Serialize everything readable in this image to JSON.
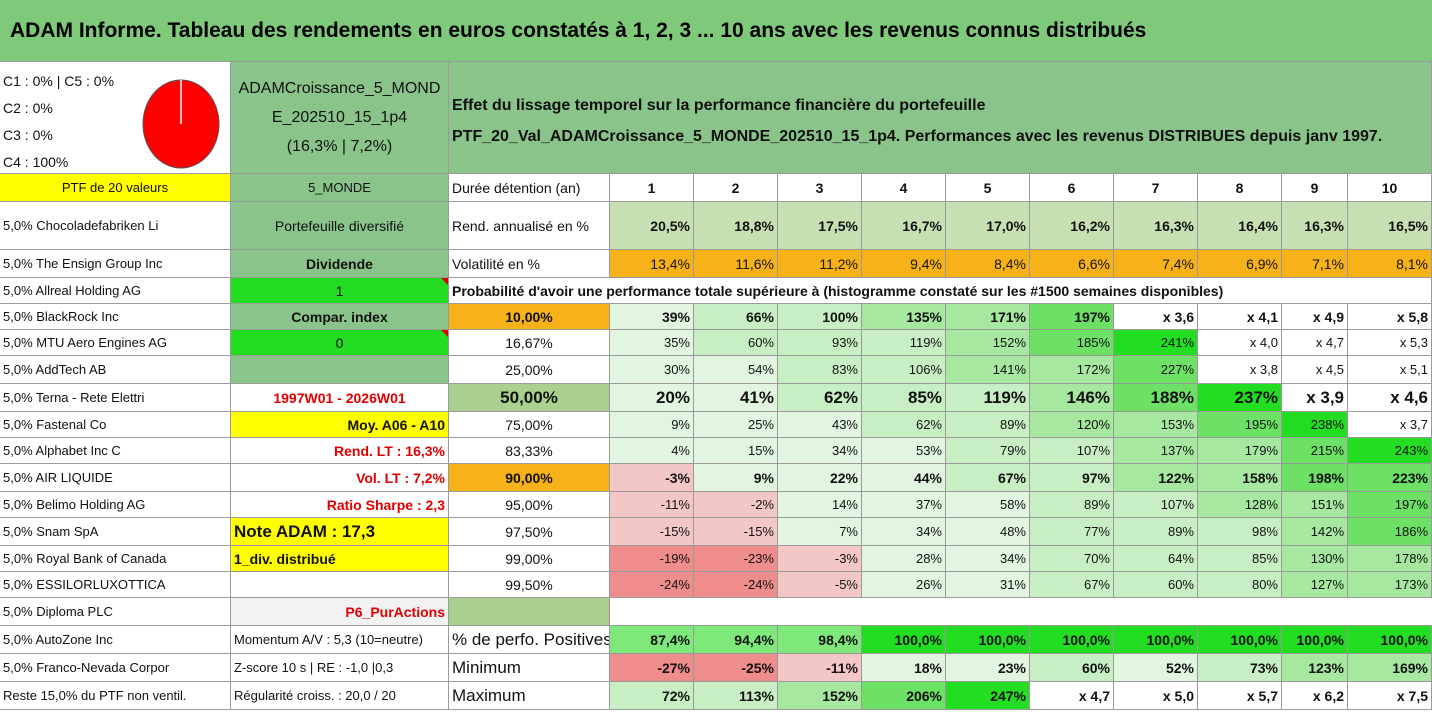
{
  "title": "ADAM Informe. Tableau des rendements en euros constatés à 1, 2, 3 ... 10 ans avec les revenus connus distribués",
  "class_lines": [
    "C1 : 0% | C5 : 0%",
    "C2 : 0%",
    "C3 : 0%",
    "C4 : 100%"
  ],
  "pie_color": "#ff0000",
  "portfolio_name_lines": [
    "ADAMCroissance_5_MOND",
    "E_202510_15_1p4",
    "(16,3% | 7,2%)"
  ],
  "description_lines": [
    "Effet du lissage temporel sur la performance financière du portefeuille",
    "PTF_20_Val_ADAMCroissance_5_MONDE_202510_15_1p4. Performances avec les revenus DISTRIBUES depuis janv 1997."
  ],
  "header_row": {
    "ptf_label": "PTF de 20 valeurs",
    "zone": "5_MONDE",
    "duration_label": "Durée détention (an)",
    "years": [
      "1",
      "2",
      "3",
      "4",
      "5",
      "6",
      "7",
      "8",
      "9",
      "10"
    ]
  },
  "holdings": [
    "5,0% Chocoladefabriken Li",
    "5,0% The Ensign Group Inc",
    "5,0% Allreal Holding AG",
    "5,0% BlackRock Inc",
    "5,0% MTU Aero Engines AG",
    "5,0% AddTech AB",
    "5,0% Terna - Rete Elettri",
    "5,0% Fastenal Co",
    "5,0% Alphabet Inc C",
    "5,0% AIR LIQUIDE",
    "5,0% Belimo Holding AG",
    "5,0% Snam SpA",
    "5,0% Royal Bank of Canada",
    "5,0% ESSILORLUXOTTICA",
    "5,0% Diploma PLC",
    "5,0% AutoZone Inc",
    "5,0% Franco-Nevada Corpor",
    "Reste 15,0% du PTF non ventil."
  ],
  "info_col": [
    "Portefeuille diversifié",
    "Dividende",
    "1",
    "Compar. index",
    "0",
    "",
    "1997W01 - 2026W01",
    "Moy. A06 - A10",
    "Rend. LT : 16,3%",
    "Vol. LT : 7,2%",
    "Ratio Sharpe : 2,3",
    "Note ADAM : 17,3",
    "1_div. distribué",
    "",
    "P6_PurActions",
    "Momentum A/V : 5,3 (10=neutre)",
    "Z-score 10 s | RE : -1,0 |0,3",
    "Régularité croiss. : 20,0 / 20"
  ],
  "rend_row": {
    "label": "Rend. annualisé en %",
    "values": [
      "20,5%",
      "18,8%",
      "17,5%",
      "16,7%",
      "17,0%",
      "16,2%",
      "16,3%",
      "16,4%",
      "16,3%",
      "16,5%"
    ]
  },
  "vol_row": {
    "label": "Volatilité en %",
    "values": [
      "13,4%",
      "11,6%",
      "11,2%",
      "9,4%",
      "8,4%",
      "6,6%",
      "7,4%",
      "6,9%",
      "7,1%",
      "8,1%"
    ]
  },
  "prob_title": "Probabilité d'avoir une performance totale supérieure à (histogramme constaté sur les #1500 semaines disponibles)",
  "prob_rows": [
    {
      "p": "10,00%",
      "values": [
        "39%",
        "66%",
        "100%",
        "135%",
        "171%",
        "197%",
        "x 3,6",
        "x 4,1",
        "x 4,9",
        "x 5,8"
      ]
    },
    {
      "p": "16,67%",
      "values": [
        "35%",
        "60%",
        "93%",
        "119%",
        "152%",
        "185%",
        "241%",
        "x 4,0",
        "x 4,7",
        "x 5,3"
      ]
    },
    {
      "p": "25,00%",
      "values": [
        "30%",
        "54%",
        "83%",
        "106%",
        "141%",
        "172%",
        "227%",
        "x 3,8",
        "x 4,5",
        "x 5,1"
      ]
    },
    {
      "p": "50,00%",
      "values": [
        "20%",
        "41%",
        "62%",
        "85%",
        "119%",
        "146%",
        "188%",
        "237%",
        "x 3,9",
        "x 4,6"
      ]
    },
    {
      "p": "75,00%",
      "values": [
        "9%",
        "25%",
        "43%",
        "62%",
        "89%",
        "120%",
        "153%",
        "195%",
        "238%",
        "x 3,7"
      ]
    },
    {
      "p": "83,33%",
      "values": [
        "4%",
        "15%",
        "34%",
        "53%",
        "79%",
        "107%",
        "137%",
        "179%",
        "215%",
        "243%"
      ]
    },
    {
      "p": "90,00%",
      "values": [
        "-3%",
        "9%",
        "22%",
        "44%",
        "67%",
        "97%",
        "122%",
        "158%",
        "198%",
        "223%"
      ]
    },
    {
      "p": "95,00%",
      "values": [
        "-11%",
        "-2%",
        "14%",
        "37%",
        "58%",
        "89%",
        "107%",
        "128%",
        "151%",
        "197%"
      ]
    },
    {
      "p": "97,50%",
      "values": [
        "-15%",
        "-15%",
        "7%",
        "34%",
        "48%",
        "77%",
        "89%",
        "98%",
        "142%",
        "186%"
      ]
    },
    {
      "p": "99,00%",
      "values": [
        "-19%",
        "-23%",
        "-3%",
        "28%",
        "34%",
        "70%",
        "64%",
        "85%",
        "130%",
        "178%"
      ]
    },
    {
      "p": "99,50%",
      "values": [
        "-24%",
        "-24%",
        "-5%",
        "26%",
        "31%",
        "67%",
        "60%",
        "80%",
        "127%",
        "173%"
      ]
    }
  ],
  "summary_rows": [
    {
      "label": "% de perfo. Positives",
      "values": [
        "87,4%",
        "94,4%",
        "98,4%",
        "100,0%",
        "100,0%",
        "100,0%",
        "100,0%",
        "100,0%",
        "100,0%",
        "100,0%"
      ]
    },
    {
      "label": "Minimum",
      "values": [
        "-27%",
        "-25%",
        "-11%",
        "18%",
        "23%",
        "60%",
        "52%",
        "73%",
        "123%",
        "169%"
      ]
    },
    {
      "label": "Maximum",
      "values": [
        "72%",
        "113%",
        "152%",
        "206%",
        "247%",
        "x 4,7",
        "x 5,0",
        "x 5,7",
        "x 6,2",
        "x 7,5"
      ]
    }
  ],
  "colors": {
    "title_green": "#7fc97a",
    "header_green": "#8bc48a",
    "yellow": "#ffff00",
    "bright_green": "#22dd22",
    "orange": "#f7b21a",
    "pale_green": "#c6e0b4",
    "mid_green": "#a9d08e",
    "neg_red_light": "#f4c7c7",
    "neg_red": "#ef8c8c"
  }
}
